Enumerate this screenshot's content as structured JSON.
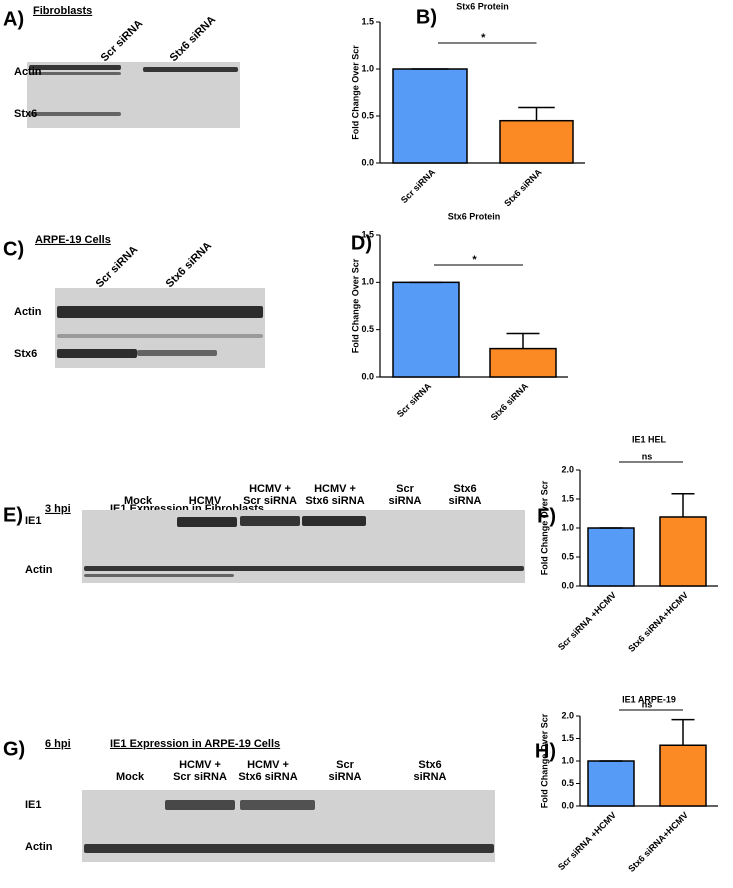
{
  "blots": [
    {
      "panel": "A)",
      "title": "Fibroblasts",
      "lanes": [
        [
          "Scr siRNA"
        ],
        [
          "Stx6 siRNA"
        ]
      ],
      "rows": [
        "Actin",
        "Stx6"
      ]
    },
    {
      "panel": "C)",
      "title": "ARPE-19 Cells",
      "lanes": [
        [
          "Scr siRNA"
        ],
        [
          "Stx6 siRNA"
        ]
      ],
      "rows": [
        "Actin",
        "Stx6"
      ]
    },
    {
      "panel": "E)",
      "timepoint": "3 hpi",
      "title": "IE1 Expression in Fibroblasts",
      "lanes": [
        [
          "Mock"
        ],
        [
          "HCMV"
        ],
        [
          "HCMV +",
          "Scr siRNA"
        ],
        [
          "HCMV +",
          "Stx6 siRNA"
        ],
        [
          "Scr",
          "siRNA"
        ],
        [
          "Stx6",
          "siRNA"
        ]
      ],
      "rows": [
        "IE1",
        "Actin"
      ]
    },
    {
      "panel": "G)",
      "timepoint": "6 hpi",
      "title": "IE1 Expression in ARPE-19 Cells",
      "lanes": [
        [
          "Mock"
        ],
        [
          "HCMV +",
          "Scr siRNA"
        ],
        [
          "HCMV +",
          "Stx6 siRNA"
        ],
        [
          "Scr",
          "siRNA"
        ],
        [
          "Stx6",
          "siRNA"
        ]
      ],
      "rows": [
        "IE1",
        "Actin"
      ]
    }
  ],
  "chart_data": [
    {
      "type": "bar",
      "panel": "B)",
      "title": "Stx6 Protein",
      "ylabel": "Fold Change Over  Scr",
      "categories": [
        "Scr siRNA",
        "Stx6 siRNA"
      ],
      "values": [
        1.0,
        0.45
      ],
      "errors": [
        0,
        0.14
      ],
      "colors": [
        "#569cf7",
        "#fb8a24"
      ],
      "ylim": [
        0,
        1.5
      ],
      "yticks": [
        {
          "value": 0,
          "label": "0.0"
        },
        {
          "value": 0.5,
          "label": "0.5"
        },
        {
          "value": 1,
          "label": "1.0"
        },
        {
          "value": 1.5,
          "label": "1.5"
        }
      ],
      "significance": "*"
    },
    {
      "type": "bar",
      "panel": "D)",
      "title": "Stx6 Protein",
      "ylabel": "Fold Change Over Scr",
      "categories": [
        "Scr siRNA",
        "Stx6 siRNA"
      ],
      "values": [
        1.0,
        0.3
      ],
      "errors": [
        0,
        0.16
      ],
      "colors": [
        "#569cf7",
        "#fb8a24"
      ],
      "ylim": [
        0,
        1.5
      ],
      "yticks": [
        {
          "value": 0,
          "label": "0.0"
        },
        {
          "value": 0.5,
          "label": "0.5"
        },
        {
          "value": 1,
          "label": "1.0"
        },
        {
          "value": 1.5,
          "label": "1.5"
        }
      ],
      "significance": "*"
    },
    {
      "type": "bar",
      "panel": "F)",
      "title": "IE1 HEL",
      "ylabel": "Fold Change Over Scr",
      "categories": [
        "Scr siRNA +HCMV",
        "Stx6 siRNA+HCMV"
      ],
      "values": [
        1.0,
        1.19
      ],
      "errors": [
        0,
        0.4
      ],
      "colors": [
        "#569cf7",
        "#fb8a24"
      ],
      "ylim": [
        0,
        2
      ],
      "yticks": [
        {
          "value": 0,
          "label": "0.0"
        },
        {
          "value": 0.5,
          "label": "0.5"
        },
        {
          "value": 1,
          "label": "1.0"
        },
        {
          "value": 1.5,
          "label": "1.5"
        },
        {
          "value": 2,
          "label": "2.0"
        }
      ],
      "significance": "ns"
    },
    {
      "type": "bar",
      "panel": "H)",
      "title": "IE1 ARPE-19",
      "ylabel": "Fold Change Over Scr",
      "categories": [
        "Scr siRNA +HCMV",
        "Stx6 siRNA+HCMV"
      ],
      "values": [
        1.0,
        1.35
      ],
      "errors": [
        0,
        0.57
      ],
      "colors": [
        "#569cf7",
        "#fb8a24"
      ],
      "ylim": [
        0,
        2
      ],
      "yticks": [
        {
          "value": 0,
          "label": "0.0"
        },
        {
          "value": 0.5,
          "label": "0.5"
        },
        {
          "value": 1,
          "label": "1.0"
        },
        {
          "value": 1.5,
          "label": "1.5"
        },
        {
          "value": 2,
          "label": "2.0"
        }
      ],
      "significance": "ns"
    }
  ]
}
